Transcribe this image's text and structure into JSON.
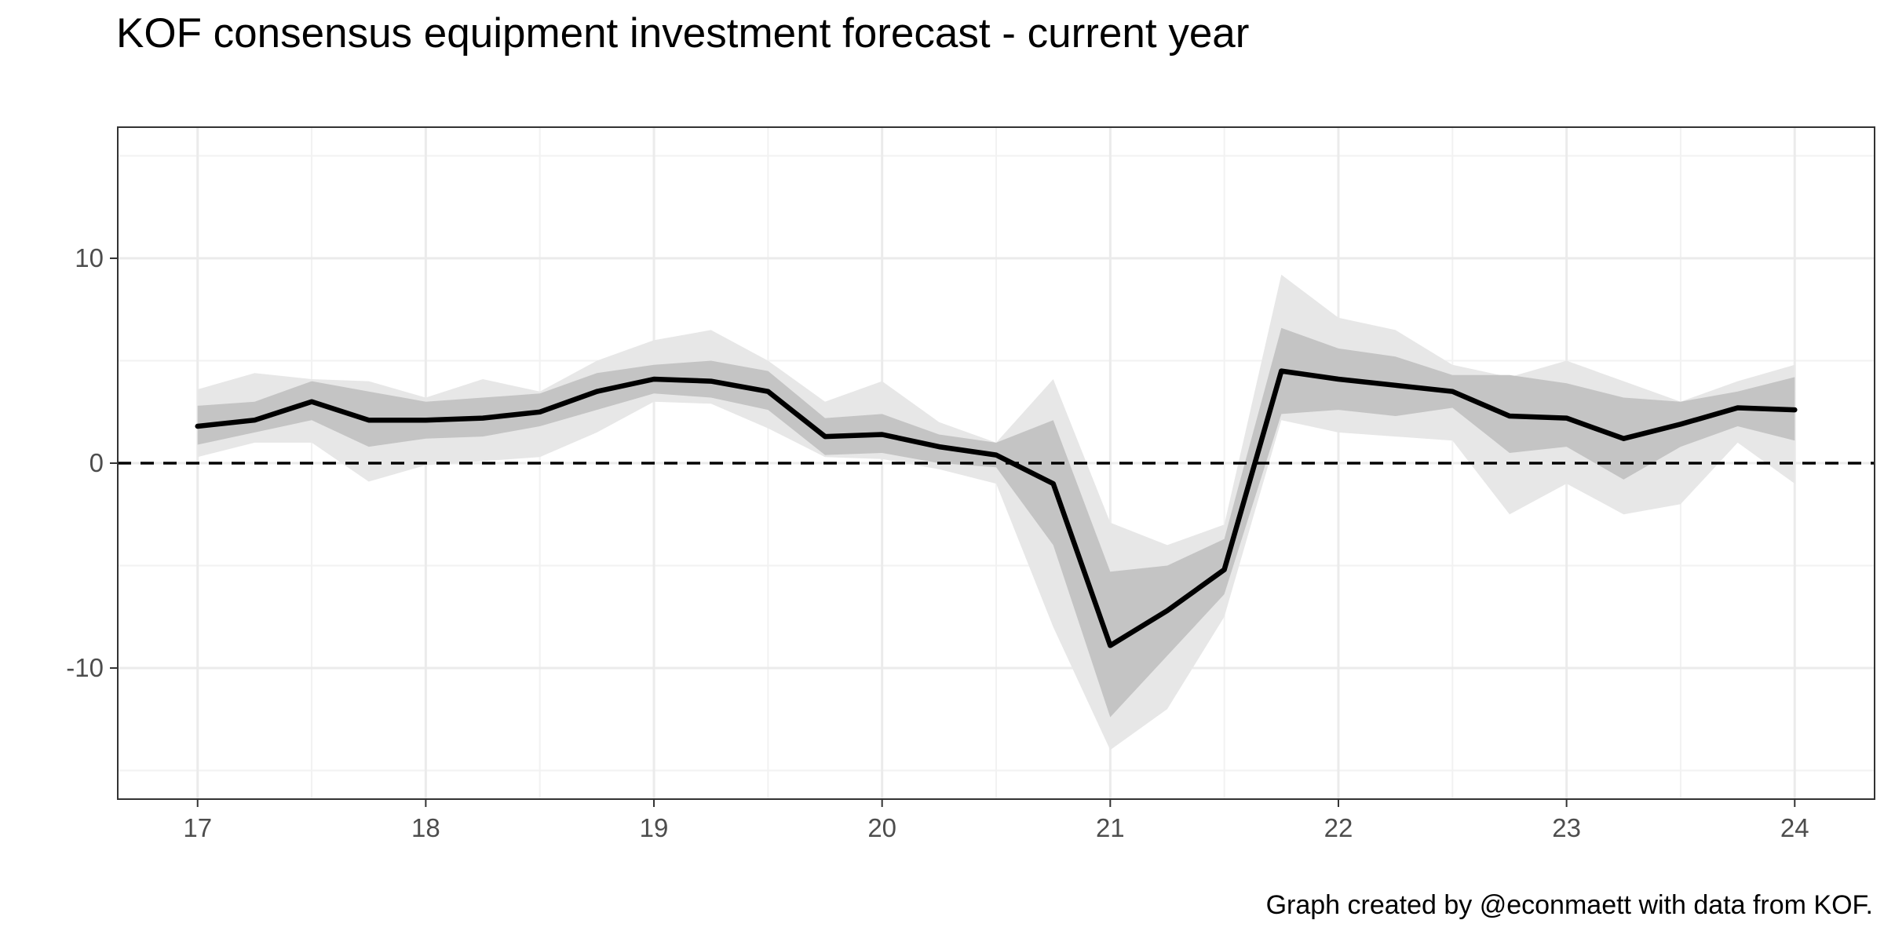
{
  "chart_data": {
    "type": "line",
    "title": "KOF consensus equipment investment forecast - current year",
    "caption": "Graph created by @econmaett with data from KOF.",
    "xlabel": "",
    "ylabel": "",
    "xlim": [
      16.65,
      24.35
    ],
    "ylim": [
      -16.4,
      16.4
    ],
    "x_ticks": [
      17,
      18,
      19,
      20,
      21,
      22,
      23,
      24
    ],
    "x_tick_labels": [
      "17",
      "18",
      "19",
      "20",
      "21",
      "22",
      "23",
      "24"
    ],
    "y_ticks": [
      10,
      0,
      -10
    ],
    "y_tick_labels": [
      "10",
      "0",
      "-10"
    ],
    "grid": true,
    "reference_line": {
      "y": 0,
      "style": "dashed"
    },
    "x": [
      17,
      17.25,
      17.5,
      17.75,
      18,
      18.25,
      18.5,
      18.75,
      19,
      19.25,
      19.5,
      19.75,
      20,
      20.25,
      20.5,
      20.75,
      21,
      21.25,
      21.5,
      21.75,
      22,
      22.25,
      22.5,
      22.75,
      23,
      23.25,
      23.5,
      23.75,
      24
    ],
    "series": [
      {
        "role": "median",
        "color": "#000000",
        "values": [
          1.8,
          2.1,
          3.0,
          2.1,
          2.1,
          2.2,
          2.5,
          3.5,
          4.1,
          4.0,
          3.5,
          1.3,
          1.4,
          0.8,
          0.4,
          -1.0,
          -8.9,
          -7.2,
          -5.2,
          4.5,
          4.1,
          3.8,
          3.5,
          2.3,
          2.2,
          1.2,
          1.9,
          2.7,
          2.6
        ]
      },
      {
        "role": "inner-band",
        "color": "#c4c4c4",
        "upper": [
          2.8,
          3.0,
          4.0,
          3.5,
          3.0,
          3.2,
          3.4,
          4.4,
          4.8,
          5.0,
          4.5,
          2.2,
          2.4,
          1.4,
          1.0,
          2.1,
          -5.3,
          -5.0,
          -3.7,
          6.6,
          5.6,
          5.2,
          4.3,
          4.3,
          3.9,
          3.2,
          3.0,
          3.5,
          4.2
        ]
      },
      {
        "role": "inner-band-lower",
        "color": "#c4c4c4",
        "values": [
          0.9,
          1.5,
          2.1,
          0.8,
          1.2,
          1.3,
          1.8,
          2.6,
          3.4,
          3.2,
          2.6,
          0.4,
          0.5,
          0.0,
          -0.2,
          -4.0,
          -12.4,
          -9.4,
          -6.4,
          2.4,
          2.6,
          2.3,
          2.7,
          0.5,
          0.8,
          -0.8,
          0.8,
          1.8,
          1.1
        ]
      },
      {
        "role": "outer-band-upper",
        "color": "#e7e7e7",
        "values": [
          3.6,
          4.4,
          4.1,
          4.0,
          3.2,
          4.1,
          3.5,
          5.0,
          6.0,
          6.5,
          5.0,
          3.0,
          4.0,
          2.0,
          1.0,
          4.1,
          -2.9,
          -4.0,
          -3.0,
          9.2,
          7.1,
          6.5,
          4.8,
          4.2,
          5.0,
          4.0,
          3.0,
          4.0,
          4.8
        ]
      },
      {
        "role": "outer-band-lower",
        "color": "#e7e7e7",
        "values": [
          0.3,
          1.0,
          1.0,
          -0.9,
          -0.1,
          0.1,
          0.3,
          1.5,
          3.0,
          2.9,
          1.7,
          0.3,
          0.2,
          -0.3,
          -1.0,
          -8.0,
          -14.0,
          -12.0,
          -7.5,
          2.1,
          1.5,
          1.3,
          1.1,
          -2.5,
          -1.0,
          -2.5,
          -2.0,
          1.0,
          -1.0
        ]
      }
    ]
  }
}
